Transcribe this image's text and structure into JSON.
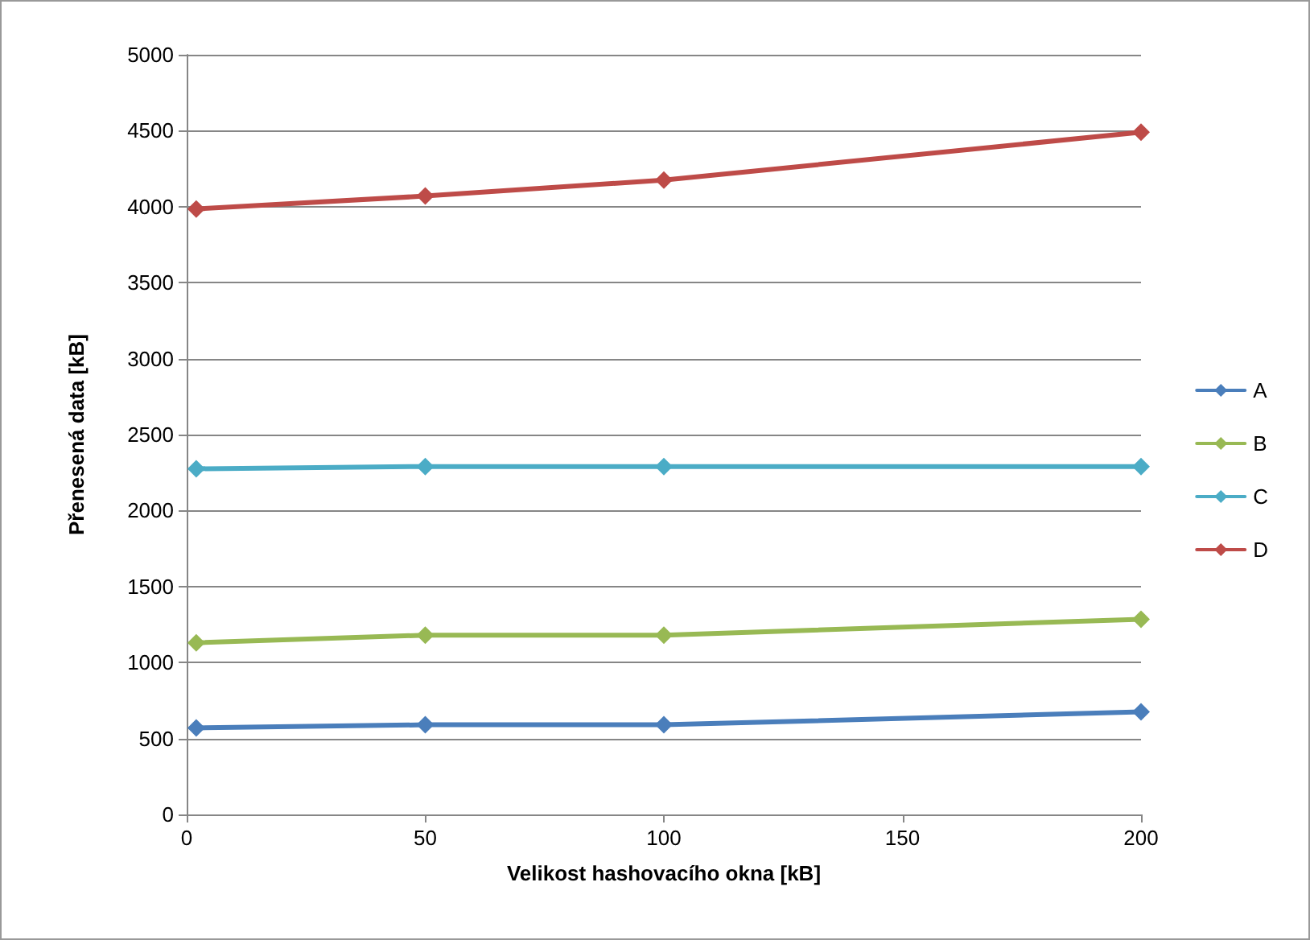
{
  "chart_data": {
    "type": "line",
    "xlabel": "Velikost hashovacího okna [kB]",
    "ylabel": "Přenesená data [kB]",
    "xlim": [
      0,
      200
    ],
    "xticks": [
      0,
      50,
      100,
      150,
      200
    ],
    "ylim": [
      0,
      5000
    ],
    "yticks": [
      0,
      500,
      1000,
      1500,
      2000,
      2500,
      3000,
      3500,
      4000,
      4500,
      5000
    ],
    "grid": "y",
    "legend": "right",
    "marker": "diamond",
    "line_style": "solid",
    "series": [
      {
        "name": "A",
        "color": "#4a7ebb",
        "x": [
          2,
          50,
          100,
          200
        ],
        "values": [
          570,
          590,
          590,
          675
        ]
      },
      {
        "name": "B",
        "color": "#98b954",
        "x": [
          2,
          50,
          100,
          200
        ],
        "values": [
          1130,
          1180,
          1180,
          1285
        ]
      },
      {
        "name": "C",
        "color": "#4bacc6",
        "x": [
          2,
          50,
          100,
          200
        ],
        "values": [
          2275,
          2290,
          2290,
          2290
        ]
      },
      {
        "name": "D",
        "color": "#be4b48",
        "x": [
          2,
          50,
          100,
          200
        ],
        "values": [
          3985,
          4070,
          4175,
          4490
        ]
      }
    ]
  }
}
